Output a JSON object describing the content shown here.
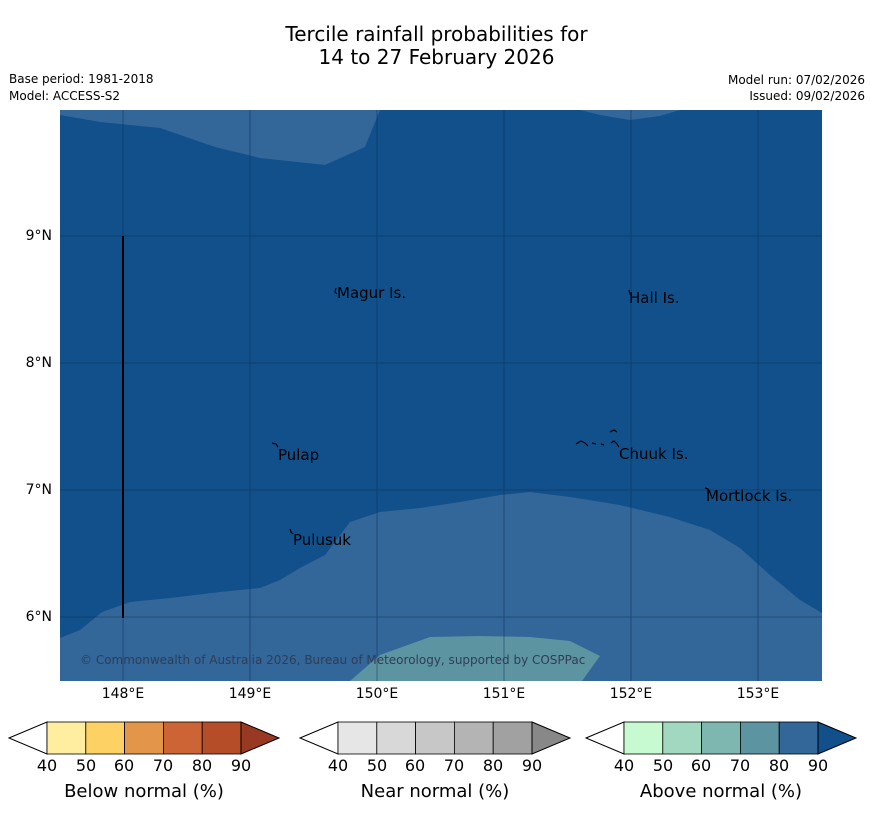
{
  "title": {
    "line1": "Tercile rainfall probabilities for",
    "line2": "14 to 27 February 2026"
  },
  "meta": {
    "base_period": "Base period: 1981-2018",
    "model": "Model: ACCESS-S2",
    "model_run": "Model run: 07/02/2026",
    "issued": "Issued: 09/02/2026"
  },
  "map": {
    "lat_labels": [
      "9°N",
      "8°N",
      "7°N",
      "6°N"
    ],
    "lon_labels": [
      "148°E",
      "149°E",
      "150°E",
      "151°E",
      "152°E",
      "153°E"
    ],
    "places": {
      "magur": "Magur Is.",
      "hall": "Hall Is.",
      "pulap": "Pulap",
      "chuuk": "Chuuk Is.",
      "mortlock": "Mortlock Is.",
      "pulusuk": "Pulusuk"
    },
    "copyright": "© Commonwealth of Australia 2026, Bureau of Meteorology, supported by COSPPac",
    "colors": {
      "above_80": "#11508b",
      "above_70": "#336699"
    }
  },
  "legend": {
    "ticks": [
      "40",
      "50",
      "60",
      "70",
      "80",
      "90"
    ],
    "below": {
      "title": "Below normal (%)",
      "colors": [
        "#ffffff",
        "#ffeda0",
        "#fed165",
        "#e3964a",
        "#cd6436",
        "#b54d28",
        "#983923"
      ]
    },
    "near": {
      "title": "Near normal (%)",
      "colors": [
        "#ffffff",
        "#e6e6e6",
        "#d8d8d8",
        "#c7c7c7",
        "#b4b4b4",
        "#a1a1a1",
        "#888888"
      ]
    },
    "above": {
      "title": "Above normal (%)",
      "colors": [
        "#ffffff",
        "#c8fad2",
        "#a3d8c0",
        "#7db7b0",
        "#5d94a2",
        "#336699",
        "#11508b"
      ]
    }
  }
}
